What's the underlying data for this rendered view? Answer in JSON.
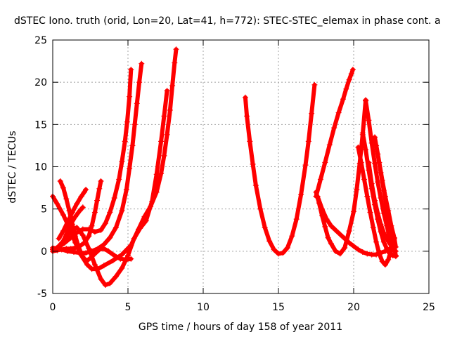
{
  "chart_data": {
    "type": "scatter",
    "title": "dSTEC Iono. truth (orid, Lon=20, Lat=41, h=772): STEC-STEC_elemax in phase cont. a",
    "xlabel": "GPS time / hours of day 158 of year 2011",
    "ylabel": "dSTEC  / TECUs",
    "xlim": [
      0,
      25
    ],
    "ylim": [
      -5,
      25
    ],
    "xticks": [
      "0",
      "5",
      "10",
      "15",
      "20",
      "25"
    ],
    "yticks": [
      "-5",
      "0",
      "5",
      "10",
      "15",
      "20",
      "25"
    ],
    "grid": true,
    "color": "#ff0000",
    "marker": "plus",
    "series": [
      {
        "x": [
          0.0,
          0.3,
          0.6,
          1.0,
          1.4,
          1.8,
          2.2,
          2.6,
          3.0,
          3.4,
          3.8,
          4.2,
          4.6,
          4.9,
          5.1,
          5.3,
          5.45,
          5.6,
          5.75,
          5.9
        ],
        "y": [
          0.4,
          0.3,
          0.2,
          0.0,
          -0.1,
          -0.2,
          -0.2,
          0.0,
          0.3,
          0.8,
          1.6,
          2.8,
          4.8,
          7.3,
          9.8,
          12.5,
          15.0,
          17.5,
          20.0,
          22.2
        ]
      },
      {
        "x": [
          0.0,
          0.4,
          0.8,
          1.2,
          1.6,
          2.0,
          2.4,
          2.8,
          3.2,
          3.5,
          3.8,
          4.1,
          4.4,
          4.6,
          4.8,
          4.95,
          5.1,
          5.2
        ],
        "y": [
          0.2,
          0.5,
          1.0,
          1.6,
          2.2,
          2.6,
          2.6,
          2.3,
          2.5,
          3.3,
          4.6,
          6.3,
          8.5,
          10.6,
          13.0,
          15.3,
          18.3,
          21.5
        ]
      },
      {
        "x": [
          0.0,
          0.3,
          0.7,
          1.1,
          1.5,
          1.9,
          2.3,
          2.6,
          3.0,
          3.4,
          4.0,
          4.6,
          5.2,
          5.7,
          6.1,
          6.5,
          6.9,
          7.2,
          7.4,
          7.6,
          7.8,
          7.95,
          8.1,
          8.2
        ],
        "y": [
          6.5,
          5.6,
          4.3,
          2.8,
          1.0,
          -0.5,
          -1.6,
          -2.1,
          -2.1,
          -1.7,
          -1.1,
          -0.4,
          0.7,
          2.6,
          4.1,
          5.3,
          7.0,
          9.2,
          11.3,
          13.8,
          16.7,
          19.6,
          22.3,
          23.9
        ]
      },
      {
        "x": [
          0.0,
          0.4,
          0.8,
          1.2,
          1.6,
          2.0,
          2.4,
          2.8,
          3.2,
          3.5,
          3.8,
          4.2,
          4.6,
          5.0,
          5.4,
          5.8,
          6.2,
          6.6,
          6.9,
          7.2,
          7.4,
          7.6
        ],
        "y": [
          0.0,
          0.6,
          1.4,
          2.4,
          2.8,
          1.9,
          0.3,
          -1.6,
          -3.3,
          -4.0,
          -3.8,
          -3.0,
          -2.0,
          -0.5,
          1.5,
          2.7,
          3.6,
          5.9,
          9.1,
          13.0,
          16.0,
          19.0
        ]
      },
      {
        "x": [
          0.5,
          0.7,
          0.9,
          1.1,
          1.3,
          1.5,
          1.7,
          1.9,
          2.1,
          2.3,
          2.5,
          2.8,
          3.1,
          3.4,
          3.7,
          4.1,
          4.5,
          4.9,
          5.2
        ],
        "y": [
          8.3,
          7.5,
          6.2,
          4.8,
          3.2,
          1.8,
          0.6,
          -0.3,
          -0.9,
          -1.1,
          -0.8,
          -0.3,
          0.2,
          0.3,
          0.0,
          -0.5,
          -0.9,
          -1.0,
          -0.9
        ]
      },
      {
        "x": [
          0.0,
          0.3,
          0.6,
          0.9,
          1.2,
          1.5,
          1.8,
          2.1,
          2.4,
          2.6,
          2.8,
          2.95,
          3.1,
          3.2
        ],
        "y": [
          0.0,
          0.1,
          0.2,
          0.3,
          0.3,
          0.4,
          0.6,
          1.0,
          1.8,
          3.0,
          4.6,
          6.0,
          7.4,
          8.3
        ]
      },
      {
        "x": [
          0.4,
          0.7,
          1.0,
          1.3,
          1.6,
          1.9,
          2.1,
          2.2
        ],
        "y": [
          1.5,
          2.4,
          3.5,
          4.6,
          5.6,
          6.5,
          7.0,
          7.3
        ]
      },
      {
        "x": [
          0.6,
          0.9,
          1.2,
          1.5,
          1.8,
          2.0
        ],
        "y": [
          0.8,
          2.0,
          3.2,
          4.1,
          4.8,
          5.2
        ]
      },
      {
        "x": [
          12.8,
          12.9,
          13.1,
          13.3,
          13.5,
          13.8,
          14.1,
          14.4,
          14.7,
          15.0,
          15.3,
          15.6,
          15.9,
          16.2,
          16.5,
          16.8,
          17.0,
          17.2,
          17.4
        ],
        "y": [
          18.2,
          16.0,
          13.0,
          10.3,
          7.8,
          5.0,
          2.8,
          1.2,
          0.2,
          -0.3,
          -0.2,
          0.4,
          1.8,
          3.8,
          6.7,
          10.2,
          13.0,
          16.3,
          19.7
        ]
      },
      {
        "x": [
          17.5,
          17.7,
          17.9,
          18.1,
          18.3,
          18.5,
          18.8,
          19.1,
          19.4,
          19.7,
          20.0,
          20.2,
          20.4,
          20.6,
          20.8
        ],
        "y": [
          7.0,
          5.7,
          4.2,
          2.9,
          1.6,
          0.9,
          0.0,
          -0.3,
          0.4,
          2.4,
          4.7,
          7.3,
          10.4,
          13.8,
          17.9
        ]
      },
      {
        "x": [
          17.5,
          17.8,
          18.1,
          18.4,
          18.7,
          19.0,
          19.3,
          19.5,
          19.7,
          19.85,
          19.95
        ],
        "y": [
          6.5,
          8.5,
          10.5,
          12.6,
          14.6,
          16.4,
          18.0,
          19.2,
          20.3,
          21.0,
          21.5
        ]
      },
      {
        "x": [
          17.6,
          17.9,
          18.2,
          18.5,
          18.8,
          19.1,
          19.4,
          19.7,
          20.0,
          20.3,
          20.6,
          20.9,
          21.2,
          21.5,
          21.8,
          22.1,
          22.4,
          22.7
        ],
        "y": [
          6.5,
          5.0,
          3.8,
          3.0,
          2.5,
          2.0,
          1.5,
          1.0,
          0.6,
          0.2,
          -0.1,
          -0.3,
          -0.4,
          -0.4,
          -0.2,
          0.0,
          0.3,
          0.9
        ]
      },
      {
        "x": [
          20.3,
          20.5,
          20.7,
          20.9,
          21.1,
          21.3,
          21.5,
          21.7,
          21.9,
          22.1,
          22.3,
          22.5,
          22.7
        ],
        "y": [
          12.3,
          10.5,
          8.5,
          6.5,
          4.6,
          2.8,
          1.1,
          -0.3,
          -1.2,
          -1.6,
          -1.0,
          0.2,
          1.5
        ]
      },
      {
        "x": [
          20.6,
          20.8,
          21.0,
          21.2,
          21.4,
          21.6,
          21.8,
          22.0,
          22.2,
          22.4,
          22.6,
          22.8
        ],
        "y": [
          14.0,
          12.0,
          9.6,
          7.4,
          5.5,
          3.8,
          2.3,
          1.1,
          0.3,
          -0.3,
          -0.5,
          -0.6
        ]
      },
      {
        "x": [
          20.8,
          21.0,
          21.2,
          21.4,
          21.6,
          21.8,
          22.0,
          22.2,
          22.4,
          22.6,
          22.7
        ],
        "y": [
          17.8,
          15.5,
          12.8,
          10.4,
          8.2,
          6.3,
          4.5,
          3.0,
          1.6,
          0.6,
          0.0
        ]
      },
      {
        "x": [
          21.4,
          21.6,
          21.8,
          22.0,
          22.2,
          22.4,
          22.6,
          22.8
        ],
        "y": [
          13.5,
          11.5,
          9.3,
          7.2,
          5.0,
          3.0,
          1.2,
          -0.5
        ]
      },
      {
        "x": [
          21.5,
          21.7,
          21.9,
          22.1,
          22.3,
          22.5,
          22.7,
          22.8
        ],
        "y": [
          12.5,
          10.5,
          8.4,
          6.5,
          4.8,
          3.0,
          1.6,
          0.5
        ]
      },
      {
        "x": [
          21.0,
          21.2,
          21.4,
          21.6,
          21.8,
          22.0,
          22.2,
          22.4,
          22.6,
          22.8
        ],
        "y": [
          10.5,
          8.0,
          6.0,
          4.5,
          3.2,
          2.2,
          1.5,
          0.9,
          0.4,
          0.0
        ]
      }
    ]
  }
}
